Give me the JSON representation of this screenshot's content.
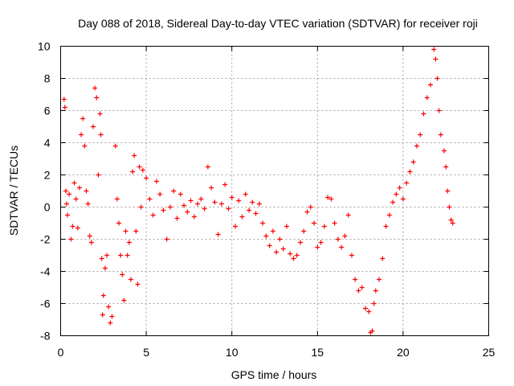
{
  "chart_data": {
    "type": "scatter",
    "title": "Day 088 of 2018, Sidereal Day-to-day VTEC variation (SDTVAR) for receiver roji",
    "xlabel": "GPS time / hours",
    "ylabel": "SDTVAR / TECUs",
    "xlim": [
      0,
      25
    ],
    "ylim": [
      -8,
      10
    ],
    "xticks": [
      0,
      5,
      10,
      15,
      20,
      25
    ],
    "yticks": [
      -8,
      -6,
      -4,
      -2,
      0,
      2,
      4,
      6,
      8,
      10
    ],
    "grid": true,
    "marker": "+",
    "series": [
      {
        "name": "SDTVAR",
        "color": "#ff0000",
        "points": [
          [
            0.2,
            6.7
          ],
          [
            0.25,
            6.2
          ],
          [
            0.3,
            1.0
          ],
          [
            0.35,
            0.2
          ],
          [
            0.4,
            -0.5
          ],
          [
            0.5,
            0.8
          ],
          [
            0.6,
            -2.0
          ],
          [
            0.7,
            -1.2
          ],
          [
            0.8,
            1.5
          ],
          [
            0.9,
            0.5
          ],
          [
            1.0,
            -1.3
          ],
          [
            1.1,
            1.2
          ],
          [
            1.2,
            4.5
          ],
          [
            1.3,
            5.5
          ],
          [
            1.4,
            3.8
          ],
          [
            1.5,
            1.0
          ],
          [
            1.6,
            0.2
          ],
          [
            1.7,
            -1.8
          ],
          [
            1.8,
            -2.2
          ],
          [
            1.9,
            5.0
          ],
          [
            2.0,
            7.4
          ],
          [
            2.1,
            6.8
          ],
          [
            2.2,
            2.0
          ],
          [
            2.3,
            5.8
          ],
          [
            2.35,
            4.5
          ],
          [
            2.4,
            -3.2
          ],
          [
            2.45,
            -6.7
          ],
          [
            2.5,
            -5.5
          ],
          [
            2.6,
            -3.8
          ],
          [
            2.7,
            -3.0
          ],
          [
            2.8,
            -6.2
          ],
          [
            2.9,
            -7.2
          ],
          [
            3.0,
            -6.8
          ],
          [
            3.2,
            3.8
          ],
          [
            3.3,
            0.5
          ],
          [
            3.4,
            -1.0
          ],
          [
            3.5,
            -3.0
          ],
          [
            3.6,
            -4.2
          ],
          [
            3.7,
            -5.8
          ],
          [
            3.8,
            -1.5
          ],
          [
            3.9,
            -3.0
          ],
          [
            4.0,
            -2.2
          ],
          [
            4.1,
            -4.5
          ],
          [
            4.2,
            2.2
          ],
          [
            4.3,
            3.2
          ],
          [
            4.4,
            -1.5
          ],
          [
            4.5,
            -4.8
          ],
          [
            4.6,
            2.5
          ],
          [
            4.7,
            0.0
          ],
          [
            4.8,
            2.3
          ],
          [
            5.0,
            1.8
          ],
          [
            5.2,
            0.5
          ],
          [
            5.4,
            -0.5
          ],
          [
            5.6,
            1.6
          ],
          [
            5.8,
            0.8
          ],
          [
            6.0,
            -0.2
          ],
          [
            6.2,
            -2.0
          ],
          [
            6.4,
            0.0
          ],
          [
            6.6,
            1.0
          ],
          [
            6.8,
            -0.7
          ],
          [
            7.0,
            0.8
          ],
          [
            7.2,
            0.1
          ],
          [
            7.4,
            -0.3
          ],
          [
            7.6,
            0.4
          ],
          [
            7.8,
            -0.6
          ],
          [
            8.0,
            0.2
          ],
          [
            8.2,
            0.5
          ],
          [
            8.4,
            -0.1
          ],
          [
            8.6,
            2.5
          ],
          [
            8.8,
            1.2
          ],
          [
            9.0,
            0.3
          ],
          [
            9.2,
            -1.7
          ],
          [
            9.4,
            0.2
          ],
          [
            9.6,
            1.4
          ],
          [
            9.8,
            -0.1
          ],
          [
            10.0,
            0.6
          ],
          [
            10.2,
            -1.2
          ],
          [
            10.4,
            0.4
          ],
          [
            10.6,
            -0.6
          ],
          [
            10.8,
            0.8
          ],
          [
            11.0,
            -0.2
          ],
          [
            11.2,
            0.3
          ],
          [
            11.4,
            -0.4
          ],
          [
            11.6,
            0.2
          ],
          [
            11.8,
            -1.0
          ],
          [
            12.0,
            -1.8
          ],
          [
            12.2,
            -2.4
          ],
          [
            12.4,
            -1.5
          ],
          [
            12.6,
            -2.8
          ],
          [
            12.8,
            -2.0
          ],
          [
            13.0,
            -2.6
          ],
          [
            13.2,
            -1.2
          ],
          [
            13.4,
            -2.9
          ],
          [
            13.6,
            -3.2
          ],
          [
            13.8,
            -3.0
          ],
          [
            14.0,
            -2.2
          ],
          [
            14.2,
            -1.5
          ],
          [
            14.4,
            -0.3
          ],
          [
            14.6,
            0.0
          ],
          [
            14.8,
            -1.0
          ],
          [
            15.0,
            -2.5
          ],
          [
            15.2,
            -2.2
          ],
          [
            15.4,
            -1.2
          ],
          [
            15.6,
            0.6
          ],
          [
            15.8,
            0.5
          ],
          [
            16.0,
            -1.0
          ],
          [
            16.2,
            -2.0
          ],
          [
            16.4,
            -2.5
          ],
          [
            16.6,
            -1.8
          ],
          [
            16.8,
            -0.5
          ],
          [
            17.0,
            -3.0
          ],
          [
            17.2,
            -4.5
          ],
          [
            17.4,
            -5.2
          ],
          [
            17.6,
            -5.0
          ],
          [
            17.8,
            -6.3
          ],
          [
            18.0,
            -6.5
          ],
          [
            18.1,
            -7.8
          ],
          [
            18.2,
            -7.7
          ],
          [
            18.3,
            -6.0
          ],
          [
            18.4,
            -5.2
          ],
          [
            18.6,
            -4.5
          ],
          [
            18.8,
            -3.2
          ],
          [
            19.0,
            -1.2
          ],
          [
            19.2,
            -0.5
          ],
          [
            19.4,
            0.3
          ],
          [
            19.6,
            0.8
          ],
          [
            19.8,
            1.2
          ],
          [
            20.0,
            0.5
          ],
          [
            20.2,
            1.5
          ],
          [
            20.4,
            2.2
          ],
          [
            20.6,
            2.8
          ],
          [
            20.8,
            3.8
          ],
          [
            21.0,
            4.5
          ],
          [
            21.2,
            5.8
          ],
          [
            21.4,
            6.8
          ],
          [
            21.6,
            7.6
          ],
          [
            21.8,
            9.8
          ],
          [
            21.9,
            9.2
          ],
          [
            22.0,
            8.0
          ],
          [
            22.1,
            6.0
          ],
          [
            22.2,
            4.5
          ],
          [
            22.4,
            3.5
          ],
          [
            22.5,
            2.5
          ],
          [
            22.6,
            1.0
          ],
          [
            22.7,
            0.0
          ],
          [
            22.8,
            -0.8
          ],
          [
            22.9,
            -1.0
          ]
        ]
      }
    ]
  }
}
